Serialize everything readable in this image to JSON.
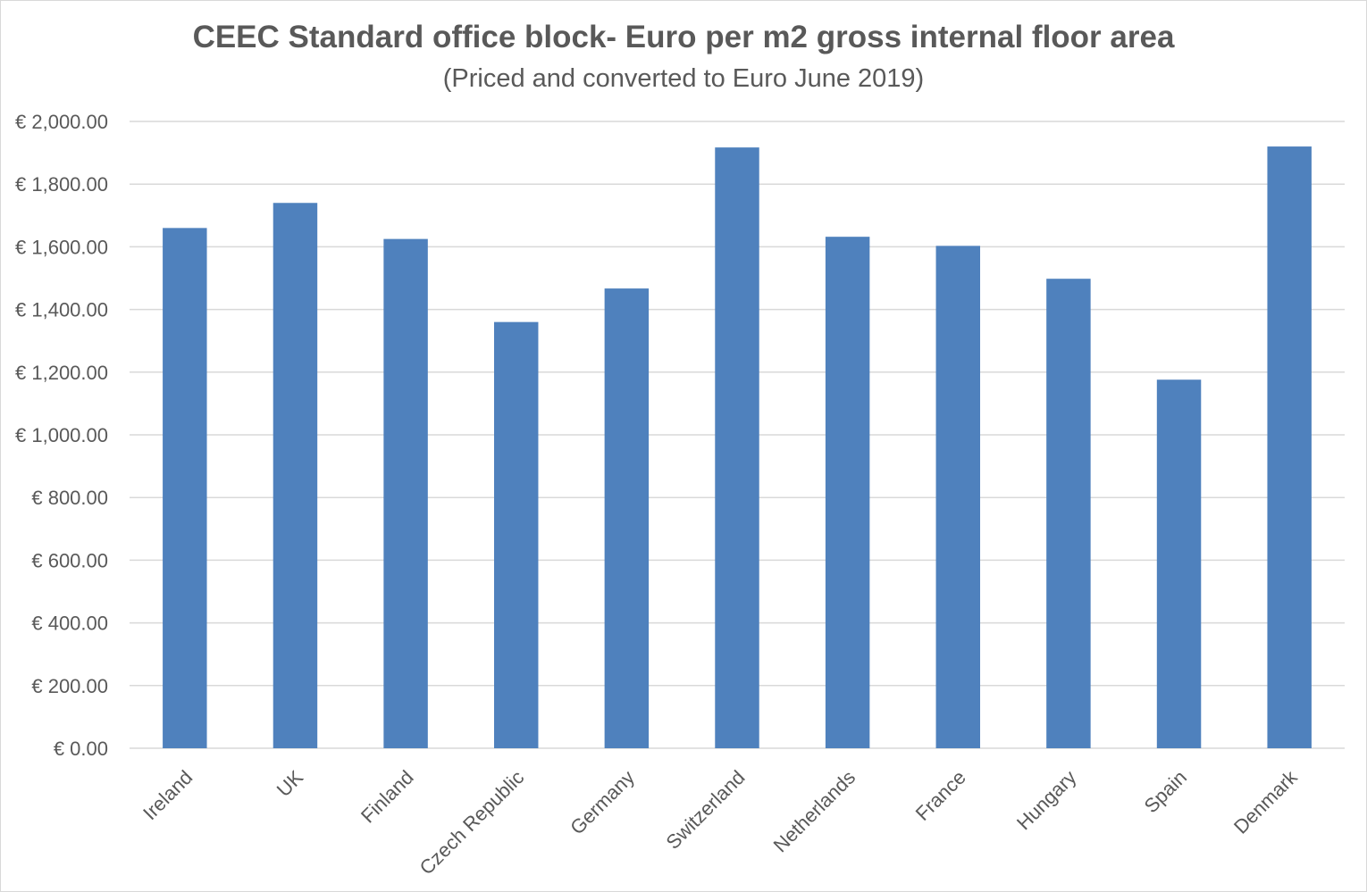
{
  "chart_data": {
    "type": "bar",
    "title": "CEEC Standard office block- Euro per m2 gross internal floor area",
    "subtitle": "(Priced and converted to Euro June 2019)",
    "xlabel": "",
    "ylabel": "",
    "categories": [
      "Ireland",
      "UK",
      "Finland",
      "Czech Republic",
      "Germany",
      "Switzerland",
      "Netherlands",
      "France",
      "Hungary",
      "Spain",
      "Denmark"
    ],
    "values": [
      1660,
      1740,
      1625,
      1360,
      1467,
      1917,
      1632,
      1603,
      1498,
      1176,
      1920
    ],
    "ylim": [
      0,
      2000
    ],
    "yticks": [
      0,
      200,
      400,
      600,
      800,
      1000,
      1200,
      1400,
      1600,
      1800,
      2000
    ],
    "ytick_labels": [
      "€ 0.00",
      "€ 200.00",
      "€ 400.00",
      "€ 600.00",
      "€ 800.00",
      "€ 1,000.00",
      "€ 1,200.00",
      "€ 1,400.00",
      "€ 1,600.00",
      "€ 1,800.00",
      "€ 2,000.00"
    ],
    "grid": true,
    "legend": "none",
    "colors": {
      "bar": "#4f81bd",
      "grid": "#d9d9d9",
      "text": "#595959",
      "title": "#595959"
    }
  }
}
